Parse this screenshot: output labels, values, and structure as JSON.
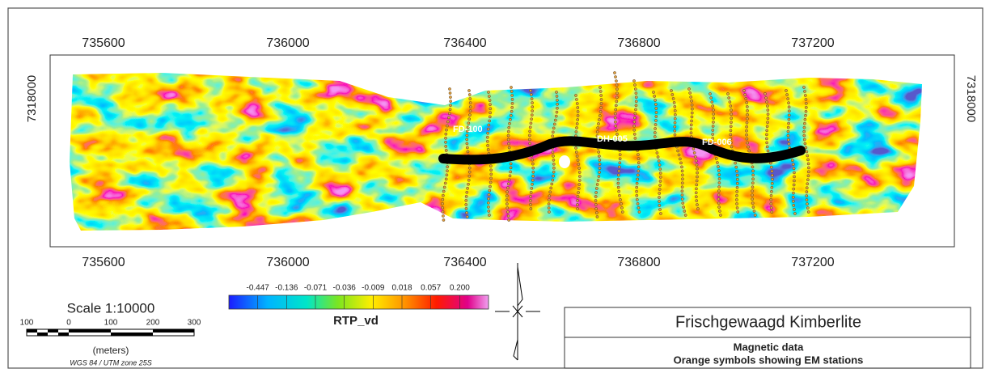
{
  "map": {
    "x_ticks_top": [
      "735600",
      "736000",
      "736400",
      "736800",
      "737200"
    ],
    "x_ticks_bottom": [
      "735600",
      "736000",
      "736400",
      "736800",
      "737200"
    ],
    "y_tick_left": "7318000",
    "y_tick_right": "7318000",
    "station_labels": [
      "FD-100",
      "DH-005",
      "FD-006"
    ]
  },
  "legend": {
    "ticks": [
      "-0.447",
      "-0.136",
      "-0.071",
      "-0.036",
      "-0.009",
      "0.018",
      "0.057",
      "0.200"
    ],
    "title": "RTP_vd"
  },
  "scale": {
    "title": "Scale 1:10000",
    "ticks": [
      "100",
      "0",
      "100",
      "200",
      "300"
    ],
    "unit": "(meters)",
    "projection": "WGS 84 / UTM zone 25S"
  },
  "title_block": {
    "title": "Frischgewaagd Kimberlite",
    "subtitle": [
      "Magnetic data",
      "Orange symbols showing EM stations"
    ]
  }
}
